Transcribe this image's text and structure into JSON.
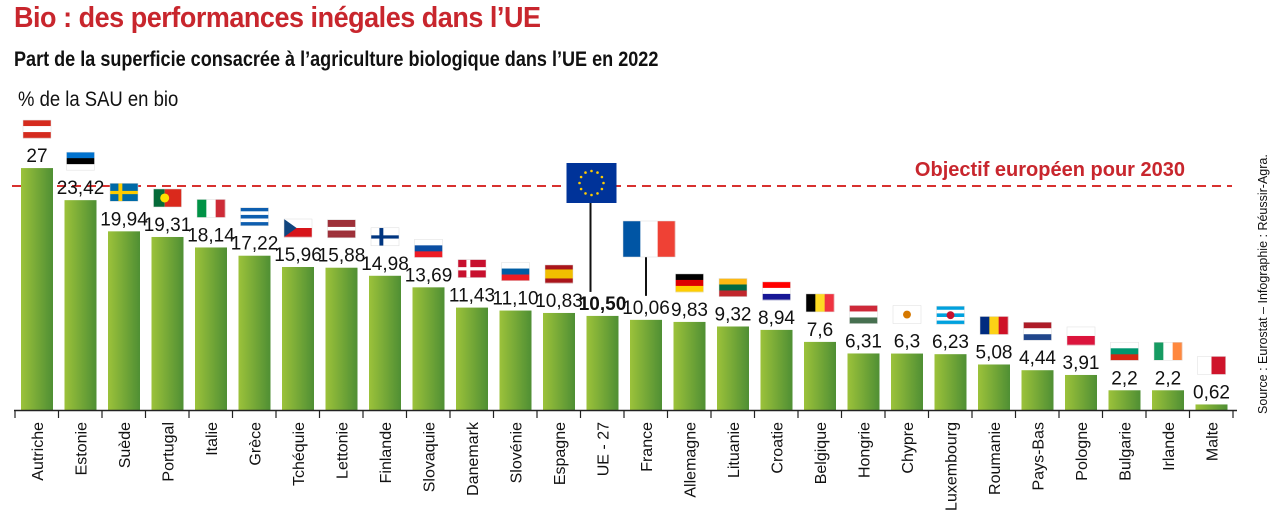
{
  "header": {
    "title": "Bio : des performances inégales dans l’UE",
    "subtitle": "Part de la superficie consacrée à l’agriculture biologique dans l’UE en 2022",
    "unit_label": "% de la SAU en bio"
  },
  "source": "Source : Eurostat – Infographie : Réussir-Agra.",
  "colors": {
    "title": "#c8262d",
    "bar_light": "#9cc23a",
    "bar_dark": "#4f8f34",
    "objective_line": "#d8312f",
    "highlight_value": "#d8312f"
  },
  "chart_data": {
    "type": "bar",
    "title": "Part de la superficie consacrée à l’agriculture biologique dans l’UE en 2022",
    "xlabel": "",
    "ylabel": "% de la SAU en bio",
    "ylim": [
      0,
      27
    ],
    "grid": false,
    "categories": [
      "Autriche",
      "Estonie",
      "Suède",
      "Portugal",
      "Italie",
      "Grèce",
      "Tchéquie",
      "Lettonie",
      "Finlande",
      "Slovaquie",
      "Danemark",
      "Slovénie",
      "Espagne",
      "UE - 27",
      "France",
      "Allemagne",
      "Lituanie",
      "Croatie",
      "Belgique",
      "Hongrie",
      "Chypre",
      "Luxembourg",
      "Roumanie",
      "Pays-Bas",
      "Pologne",
      "Bulgarie",
      "Irlande",
      "Malte"
    ],
    "values": [
      27,
      23.42,
      19.94,
      19.31,
      18.14,
      17.22,
      15.96,
      15.88,
      14.98,
      13.69,
      11.43,
      11.1,
      10.83,
      10.5,
      10.06,
      9.83,
      9.32,
      8.94,
      7.6,
      6.31,
      6.3,
      6.23,
      5.08,
      4.44,
      3.91,
      2.2,
      2.2,
      0.62
    ],
    "value_labels": [
      "27",
      "23,42",
      "19,94",
      "19,31",
      "18,14",
      "17,22",
      "15,96",
      "15,88",
      "14,98",
      "13,69",
      "11,43",
      "11,10",
      "10,83",
      "10,50",
      "10,06",
      "9,83",
      "9,32",
      "8,94",
      "7,6",
      "6,31",
      "6,3",
      "6,23",
      "5,08",
      "4,44",
      "3,91",
      "2,2",
      "2,2",
      "0,62"
    ],
    "highlighted_category": "UE - 27",
    "reference_line": {
      "label": "Objectif européen pour 2030",
      "value": 25
    },
    "flags": [
      "austria-flag",
      "estonia-flag",
      "sweden-flag",
      "portugal-flag",
      "italy-flag",
      "greece-flag",
      "czechia-flag",
      "latvia-flag",
      "finland-flag",
      "slovakia-flag",
      "denmark-flag",
      "slovenia-flag",
      "spain-flag",
      "eu-flag",
      "france-flag",
      "germany-flag",
      "lithuania-flag",
      "croatia-flag",
      "belgium-flag",
      "hungary-flag",
      "cyprus-flag",
      "luxembourg-flag",
      "romania-flag",
      "netherlands-flag",
      "poland-flag",
      "bulgaria-flag",
      "ireland-flag",
      "malta-flag"
    ]
  }
}
